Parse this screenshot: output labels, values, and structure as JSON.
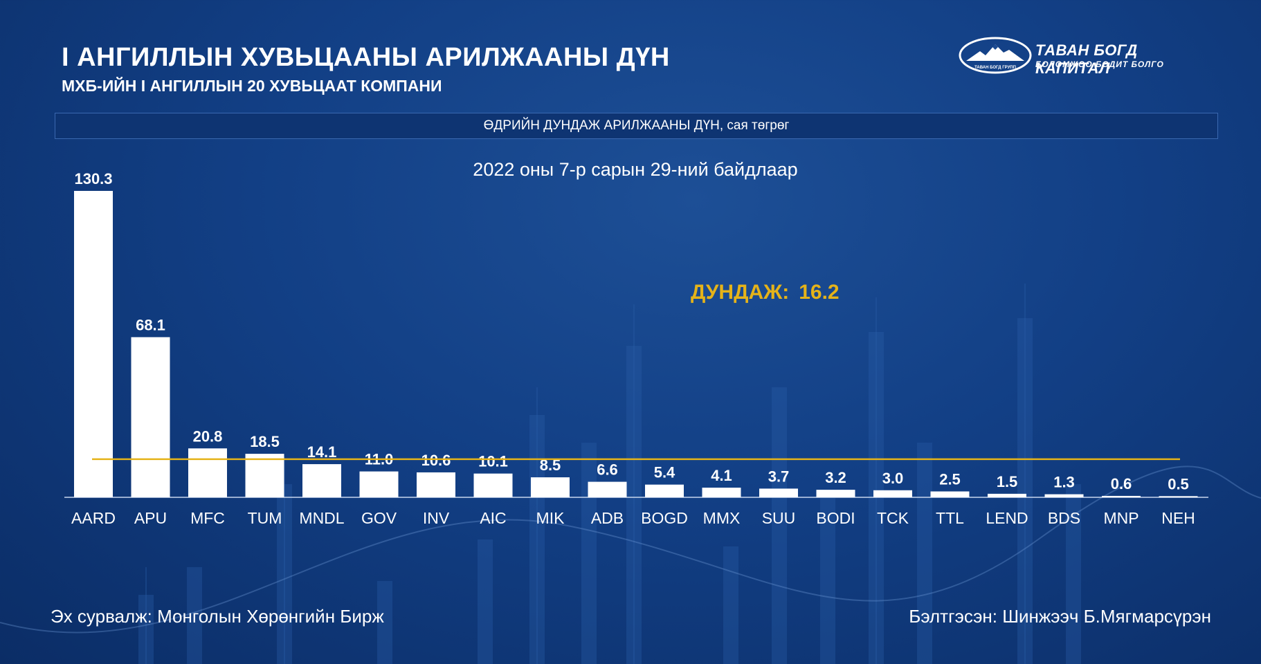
{
  "header": {
    "title": "I АНГИЛЛЫН ХУВЬЦААНЫ АРИЛЖААНЫ ДҮН",
    "subtitle": "МХБ-ИЙН I АНГИЛЛЫН 20 ХУВЬЦААТ КОМПАНИ"
  },
  "logo": {
    "name": "ТАВАН БОГД КАПИТАЛ",
    "tagline": "БОЛОМЖОО БОДИТ БОЛГО",
    "oval_text": "ТАВАН БОГД ГРУПП"
  },
  "banner": {
    "text": "ӨДРИЙН ДУНДАЖ АРИЛЖААНЫ ДҮН, сая төгрөг"
  },
  "date_label": "2022 оны 7-р сарын 29-ний байдлаар",
  "footer": {
    "source": "Эх сурвалж: Монголын Хөрөнгийн Бирж",
    "author": "Бэлтгэсэн: Шинжээч Б.Мягмарсүрэн"
  },
  "colors": {
    "background": "#123f85",
    "bar": "#ffffff",
    "average_line": "#e5b319",
    "average_text": "#e5b319"
  },
  "chart_data": {
    "type": "bar",
    "title": "ӨДРИЙН ДУНДАЖ АРИЛЖААНЫ ДҮН, сая төгрөг",
    "categories": [
      "AARD",
      "APU",
      "MFC",
      "TUM",
      "MNDL",
      "GOV",
      "INV",
      "AIC",
      "MIK",
      "ADB",
      "BOGD",
      "MMX",
      "SUU",
      "BODI",
      "TCK",
      "TTL",
      "LEND",
      "BDS",
      "MNP",
      "NEH"
    ],
    "values": [
      130.3,
      68.1,
      20.8,
      18.5,
      14.1,
      11.0,
      10.6,
      10.1,
      8.5,
      6.6,
      5.4,
      4.1,
      3.7,
      3.2,
      3.0,
      2.5,
      1.5,
      1.3,
      0.6,
      0.5
    ],
    "value_labels": [
      "130.3",
      "68.1",
      "20.8",
      "18.5",
      "14.1",
      "11.0",
      "10.6",
      "10.1",
      "8.5",
      "6.6",
      "5.4",
      "4.1",
      "3.7",
      "3.2",
      "3.0",
      "2.5",
      "1.5",
      "1.3",
      "0.6",
      "0.5"
    ],
    "average": {
      "label": "ДУНДАЖ:",
      "value": 16.2,
      "value_text": "16.2"
    },
    "ylim": [
      0,
      130.3
    ],
    "grid": false,
    "legend": "none"
  }
}
